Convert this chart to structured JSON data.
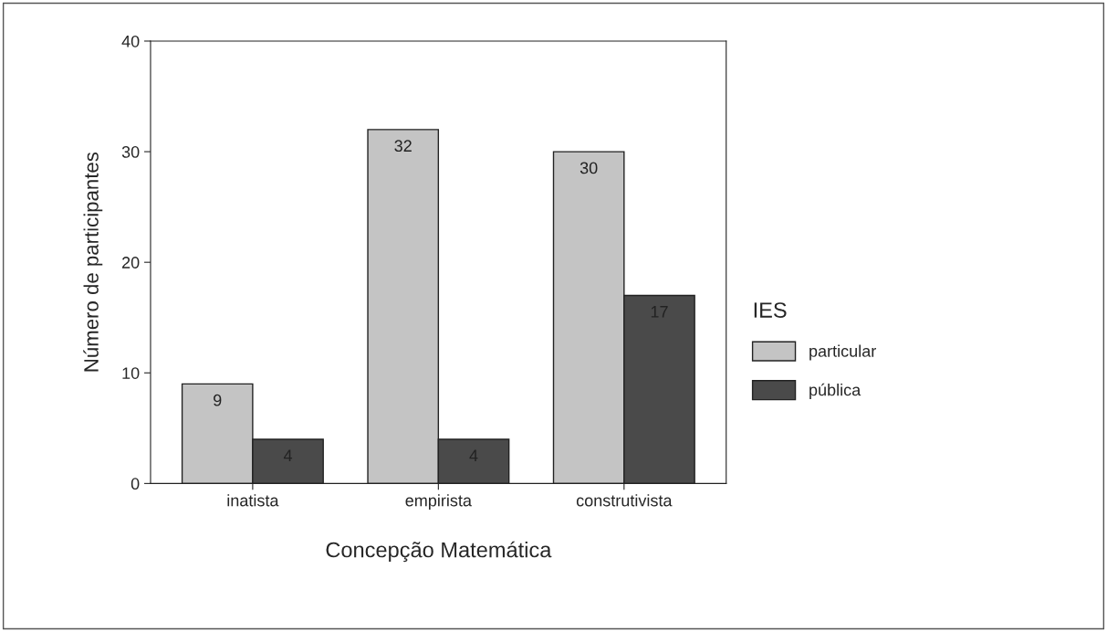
{
  "chart_data": {
    "type": "bar",
    "xlabel": "Concepção Matemática",
    "ylabel": "Número de participantes",
    "legend_title": "IES",
    "categories": [
      "inatista",
      "empirista",
      "construtivista"
    ],
    "series": [
      {
        "name": "particular",
        "color": "#c4c4c4",
        "values": [
          9,
          32,
          30
        ]
      },
      {
        "name": "pública",
        "color": "#4a4a4a",
        "values": [
          4,
          4,
          17
        ]
      }
    ],
    "ylim": [
      0,
      40
    ],
    "yticks": [
      0,
      10,
      20,
      30,
      40
    ],
    "grid": false,
    "legend": "right",
    "data_labels": true
  }
}
